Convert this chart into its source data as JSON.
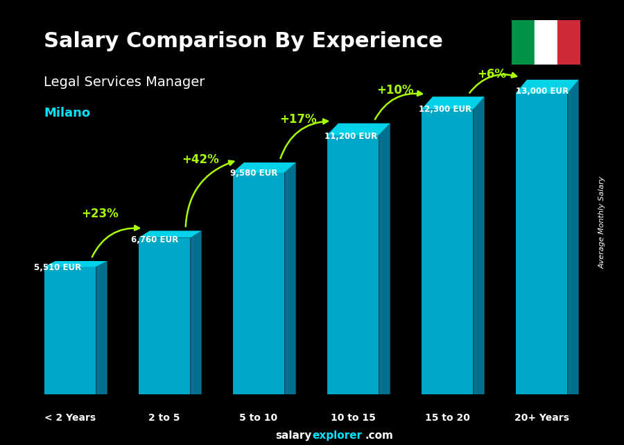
{
  "title": "Salary Comparison By Experience",
  "subtitle": "Legal Services Manager",
  "city": "Milano",
  "categories": [
    "< 2 Years",
    "2 to 5",
    "5 to 10",
    "10 to 15",
    "15 to 20",
    "20+ Years"
  ],
  "values": [
    5510,
    6760,
    9580,
    11200,
    12300,
    13000
  ],
  "value_labels": [
    "5,510 EUR",
    "6,760 EUR",
    "9,580 EUR",
    "11,200 EUR",
    "12,300 EUR",
    "13,000 EUR"
  ],
  "pct_labels": [
    "+23%",
    "+42%",
    "+17%",
    "+10%",
    "+6%"
  ],
  "bar_color_top": "#00d4f0",
  "bar_color_mid": "#00aacc",
  "bar_color_dark": "#007a99",
  "bar_color_side": "#005f77",
  "background_color": "#1a1a2e",
  "title_color": "#ffffff",
  "subtitle_color": "#ffffff",
  "city_color": "#00e5ff",
  "value_color": "#ffffff",
  "pct_color": "#aaff00",
  "arrow_color": "#aaff00",
  "ylabel": "Average Monthly Salary",
  "footer": "salaryexplorer.com",
  "footer_salary": "salary",
  "footer_explorer": "explorer",
  "ylim": [
    0,
    16000
  ],
  "bar_width": 0.55,
  "depth": 0.18
}
